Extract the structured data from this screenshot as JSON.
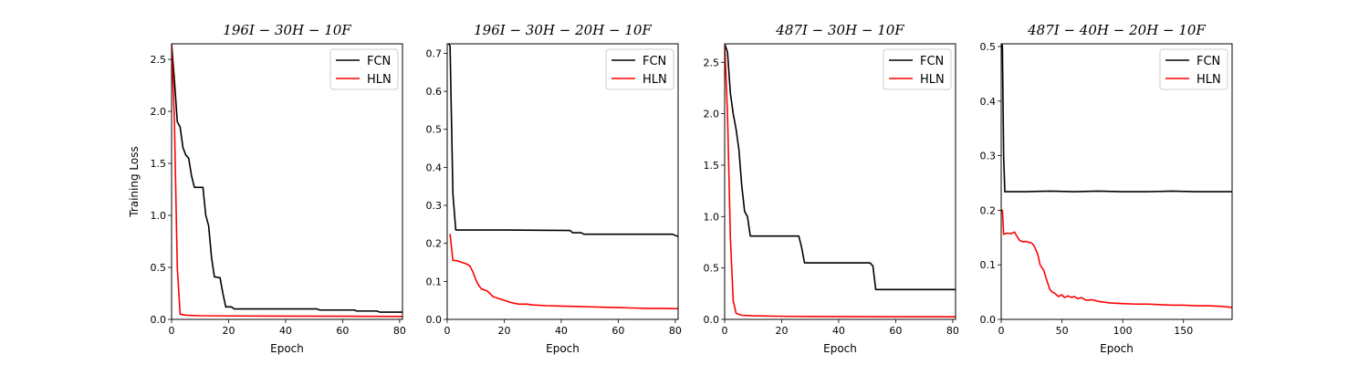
{
  "chart_data": [
    {
      "type": "line",
      "title": "196I − 30H − 10F",
      "xlabel": "Epoch",
      "ylabel": "Training Loss",
      "xlim": [
        0,
        81
      ],
      "ylim": [
        0,
        2.65
      ],
      "xticks": [
        0,
        20,
        40,
        60,
        80
      ],
      "xtick_labels": [
        "0",
        "20",
        "40",
        "60",
        "80"
      ],
      "yticks": [
        0.0,
        0.5,
        1.0,
        1.5,
        2.0,
        2.5
      ],
      "ytick_labels": [
        "0.0",
        "0.5",
        "1.0",
        "1.5",
        "2.0",
        "2.5"
      ],
      "legend": "top-right",
      "series": [
        {
          "name": "FCN",
          "color": "#000000",
          "points": [
            [
              0,
              2.65
            ],
            [
              1,
              2.3
            ],
            [
              2,
              1.9
            ],
            [
              3,
              1.85
            ],
            [
              4,
              1.65
            ],
            [
              5,
              1.58
            ],
            [
              6,
              1.55
            ],
            [
              7,
              1.38
            ],
            [
              8,
              1.27
            ],
            [
              11,
              1.27
            ],
            [
              12,
              1.0
            ],
            [
              13,
              0.9
            ],
            [
              14,
              0.6
            ],
            [
              15,
              0.41
            ],
            [
              17,
              0.4
            ],
            [
              18,
              0.25
            ],
            [
              19,
              0.12
            ],
            [
              21,
              0.12
            ],
            [
              22,
              0.1
            ],
            [
              30,
              0.1
            ],
            [
              51,
              0.1
            ],
            [
              52,
              0.09
            ],
            [
              64,
              0.09
            ],
            [
              65,
              0.08
            ],
            [
              72,
              0.08
            ],
            [
              73,
              0.07
            ],
            [
              81,
              0.07
            ]
          ]
        },
        {
          "name": "HLN",
          "color": "#ff0000",
          "points": [
            [
              0,
              2.65
            ],
            [
              1,
              1.9
            ],
            [
              2,
              0.5
            ],
            [
              3,
              0.05
            ],
            [
              5,
              0.04
            ],
            [
              10,
              0.035
            ],
            [
              20,
              0.033
            ],
            [
              40,
              0.031
            ],
            [
              60,
              0.03
            ],
            [
              81,
              0.028
            ]
          ]
        }
      ]
    },
    {
      "type": "line",
      "title": "196I − 30H − 20H − 10F",
      "xlabel": "Epoch",
      "ylabel": "",
      "xlim": [
        0,
        81
      ],
      "ylim": [
        0,
        0.725
      ],
      "xticks": [
        0,
        20,
        40,
        60,
        80
      ],
      "xtick_labels": [
        "0",
        "20",
        "40",
        "60",
        "80"
      ],
      "yticks": [
        0.0,
        0.1,
        0.2,
        0.3,
        0.4,
        0.5,
        0.6,
        0.7
      ],
      "ytick_labels": [
        "0.0",
        "0.1",
        "0.2",
        "0.3",
        "0.4",
        "0.5",
        "0.6",
        "0.7"
      ],
      "legend": "top-right",
      "series": [
        {
          "name": "FCN",
          "color": "#000000",
          "points": [
            [
              0.5,
              0.725
            ],
            [
              1,
              0.72
            ],
            [
              2,
              0.33
            ],
            [
              3,
              0.235
            ],
            [
              20,
              0.235
            ],
            [
              43,
              0.234
            ],
            [
              44,
              0.228
            ],
            [
              47,
              0.228
            ],
            [
              48,
              0.224
            ],
            [
              60,
              0.224
            ],
            [
              79,
              0.224
            ],
            [
              81,
              0.218
            ]
          ]
        },
        {
          "name": "HLN",
          "color": "#ff0000",
          "points": [
            [
              1,
              0.225
            ],
            [
              2,
              0.155
            ],
            [
              3,
              0.155
            ],
            [
              4,
              0.153
            ],
            [
              5,
              0.15
            ],
            [
              6,
              0.148
            ],
            [
              7,
              0.145
            ],
            [
              8,
              0.14
            ],
            [
              9,
              0.125
            ],
            [
              10,
              0.105
            ],
            [
              11,
              0.09
            ],
            [
              12,
              0.08
            ],
            [
              14,
              0.075
            ],
            [
              15,
              0.068
            ],
            [
              16,
              0.06
            ],
            [
              18,
              0.055
            ],
            [
              20,
              0.05
            ],
            [
              22,
              0.045
            ],
            [
              25,
              0.04
            ],
            [
              28,
              0.04
            ],
            [
              30,
              0.038
            ],
            [
              35,
              0.036
            ],
            [
              40,
              0.035
            ],
            [
              45,
              0.034
            ],
            [
              50,
              0.033
            ],
            [
              55,
              0.032
            ],
            [
              60,
              0.031
            ],
            [
              65,
              0.03
            ],
            [
              70,
              0.029
            ],
            [
              75,
              0.029
            ],
            [
              81,
              0.028
            ]
          ]
        }
      ]
    },
    {
      "type": "line",
      "title": "487I − 30H − 10F",
      "xlabel": "Epoch",
      "ylabel": "",
      "xlim": [
        0,
        81
      ],
      "ylim": [
        0,
        2.68
      ],
      "xticks": [
        0,
        20,
        40,
        60,
        80
      ],
      "xtick_labels": [
        "0",
        "20",
        "40",
        "60",
        "80"
      ],
      "yticks": [
        0.0,
        0.5,
        1.0,
        1.5,
        2.0,
        2.5
      ],
      "ytick_labels": [
        "0.0",
        "0.5",
        "1.0",
        "1.5",
        "2.0",
        "2.5"
      ],
      "legend": "top-right",
      "series": [
        {
          "name": "FCN",
          "color": "#000000",
          "points": [
            [
              0,
              2.68
            ],
            [
              1,
              2.6
            ],
            [
              2,
              2.2
            ],
            [
              3,
              2.0
            ],
            [
              4,
              1.85
            ],
            [
              5,
              1.65
            ],
            [
              6,
              1.3
            ],
            [
              7,
              1.05
            ],
            [
              8,
              1.0
            ],
            [
              9,
              0.81
            ],
            [
              12,
              0.81
            ],
            [
              26,
              0.81
            ],
            [
              27,
              0.7
            ],
            [
              28,
              0.55
            ],
            [
              51,
              0.55
            ],
            [
              52,
              0.52
            ],
            [
              53,
              0.29
            ],
            [
              81,
              0.29
            ]
          ]
        },
        {
          "name": "HLN",
          "color": "#ff0000",
          "points": [
            [
              0,
              2.68
            ],
            [
              1,
              2.0
            ],
            [
              2,
              0.8
            ],
            [
              3,
              0.18
            ],
            [
              4,
              0.06
            ],
            [
              6,
              0.04
            ],
            [
              10,
              0.035
            ],
            [
              20,
              0.03
            ],
            [
              40,
              0.027
            ],
            [
              60,
              0.025
            ],
            [
              81,
              0.025
            ]
          ]
        }
      ]
    },
    {
      "type": "line",
      "title": "487I − 40H − 20H − 10F",
      "xlabel": "Epoch",
      "ylabel": "",
      "xlim": [
        0,
        190
      ],
      "ylim": [
        0,
        0.505
      ],
      "xticks": [
        0,
        50,
        100,
        150
      ],
      "xtick_labels": [
        "0",
        "50",
        "100",
        "150"
      ],
      "yticks": [
        0.0,
        0.1,
        0.2,
        0.3,
        0.4,
        0.5
      ],
      "ytick_labels": [
        "0.0",
        "0.1",
        "0.2",
        "0.3",
        "0.4",
        "0.5"
      ],
      "legend": "top-right",
      "series": [
        {
          "name": "FCN",
          "color": "#000000",
          "points": [
            [
              0.5,
              0.505
            ],
            [
              1,
              0.5
            ],
            [
              2,
              0.3
            ],
            [
              3,
              0.234
            ],
            [
              20,
              0.234
            ],
            [
              40,
              0.235
            ],
            [
              60,
              0.234
            ],
            [
              80,
              0.235
            ],
            [
              100,
              0.234
            ],
            [
              120,
              0.234
            ],
            [
              140,
              0.235
            ],
            [
              160,
              0.234
            ],
            [
              190,
              0.234
            ]
          ]
        },
        {
          "name": "HLN",
          "color": "#ff0000",
          "points": [
            [
              0,
              0.2
            ],
            [
              1,
              0.2
            ],
            [
              2,
              0.156
            ],
            [
              5,
              0.158
            ],
            [
              8,
              0.157
            ],
            [
              11,
              0.16
            ],
            [
              13,
              0.152
            ],
            [
              15,
              0.145
            ],
            [
              18,
              0.142
            ],
            [
              20,
              0.143
            ],
            [
              23,
              0.141
            ],
            [
              25,
              0.14
            ],
            [
              27,
              0.135
            ],
            [
              30,
              0.12
            ],
            [
              32,
              0.1
            ],
            [
              35,
              0.09
            ],
            [
              37,
              0.075
            ],
            [
              40,
              0.055
            ],
            [
              42,
              0.05
            ],
            [
              44,
              0.048
            ],
            [
              47,
              0.042
            ],
            [
              50,
              0.045
            ],
            [
              52,
              0.04
            ],
            [
              55,
              0.043
            ],
            [
              58,
              0.04
            ],
            [
              60,
              0.042
            ],
            [
              63,
              0.038
            ],
            [
              66,
              0.04
            ],
            [
              70,
              0.035
            ],
            [
              75,
              0.036
            ],
            [
              80,
              0.033
            ],
            [
              90,
              0.03
            ],
            [
              100,
              0.029
            ],
            [
              110,
              0.028
            ],
            [
              120,
              0.028
            ],
            [
              130,
              0.027
            ],
            [
              140,
              0.026
            ],
            [
              150,
              0.026
            ],
            [
              160,
              0.025
            ],
            [
              170,
              0.025
            ],
            [
              180,
              0.024
            ],
            [
              190,
              0.022
            ]
          ]
        }
      ]
    }
  ]
}
